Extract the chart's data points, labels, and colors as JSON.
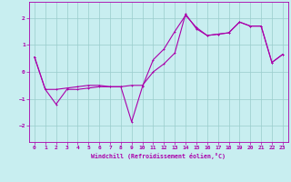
{
  "xlabel": "Windchill (Refroidissement éolien,°C)",
  "bg_color": "#c8eef0",
  "line_color": "#aa00aa",
  "grid_color": "#99cccc",
  "xlim": [
    -0.5,
    23.5
  ],
  "ylim": [
    -2.6,
    2.6
  ],
  "yticks": [
    -2,
    -1,
    0,
    1,
    2
  ],
  "xticks": [
    0,
    1,
    2,
    3,
    4,
    5,
    6,
    7,
    8,
    9,
    10,
    11,
    12,
    13,
    14,
    15,
    16,
    17,
    18,
    19,
    20,
    21,
    22,
    23
  ],
  "series1": [
    [
      0,
      0.55
    ],
    [
      1,
      -0.65
    ],
    [
      2,
      -1.2
    ],
    [
      3,
      -0.65
    ],
    [
      4,
      -0.65
    ],
    [
      5,
      -0.6
    ],
    [
      6,
      -0.55
    ],
    [
      7,
      -0.55
    ],
    [
      8,
      -0.55
    ],
    [
      9,
      -1.85
    ],
    [
      10,
      -0.55
    ],
    [
      11,
      0.45
    ],
    [
      12,
      0.85
    ],
    [
      13,
      1.5
    ],
    [
      14,
      2.1
    ],
    [
      15,
      1.65
    ],
    [
      16,
      1.35
    ],
    [
      17,
      1.4
    ],
    [
      18,
      1.45
    ],
    [
      19,
      1.85
    ],
    [
      20,
      1.7
    ],
    [
      21,
      1.7
    ],
    [
      22,
      0.35
    ],
    [
      23,
      0.65
    ]
  ],
  "series2": [
    [
      0,
      0.55
    ],
    [
      1,
      -0.65
    ],
    [
      2,
      -0.65
    ],
    [
      3,
      -0.6
    ],
    [
      4,
      -0.55
    ],
    [
      5,
      -0.5
    ],
    [
      6,
      -0.5
    ],
    [
      7,
      -0.55
    ],
    [
      8,
      -0.55
    ],
    [
      9,
      -0.5
    ],
    [
      10,
      -0.5
    ],
    [
      11,
      0.0
    ],
    [
      12,
      0.3
    ],
    [
      13,
      0.7
    ],
    [
      14,
      2.15
    ],
    [
      15,
      1.6
    ],
    [
      16,
      1.35
    ],
    [
      17,
      1.4
    ],
    [
      18,
      1.45
    ],
    [
      19,
      1.85
    ],
    [
      20,
      1.7
    ],
    [
      21,
      1.7
    ],
    [
      22,
      0.35
    ],
    [
      23,
      0.65
    ]
  ]
}
